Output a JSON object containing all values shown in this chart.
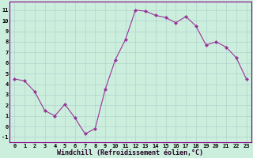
{
  "x": [
    0,
    1,
    2,
    3,
    4,
    5,
    6,
    7,
    8,
    9,
    10,
    11,
    12,
    13,
    14,
    15,
    16,
    17,
    18,
    19,
    20,
    21,
    22,
    23
  ],
  "y": [
    4.5,
    4.3,
    3.3,
    1.5,
    1.0,
    2.1,
    0.8,
    -0.7,
    -0.2,
    3.5,
    6.3,
    8.2,
    11.0,
    10.9,
    10.5,
    10.3,
    9.8,
    10.4,
    9.5,
    7.7,
    8.0,
    7.5,
    6.5,
    4.5
  ],
  "line_color": "#993399",
  "marker": "D",
  "marker_size": 2.0,
  "bg_color": "#cceedd",
  "grid_color": "#aacccc",
  "xlabel": "Windchill (Refroidissement éolien,°C)",
  "ylim_min": -1.5,
  "ylim_max": 11.8,
  "xlim_min": -0.5,
  "xlim_max": 23.5,
  "yticks": [
    -1,
    0,
    1,
    2,
    3,
    4,
    5,
    6,
    7,
    8,
    9,
    10,
    11
  ],
  "xticks": [
    0,
    1,
    2,
    3,
    4,
    5,
    6,
    7,
    8,
    9,
    10,
    11,
    12,
    13,
    14,
    15,
    16,
    17,
    18,
    19,
    20,
    21,
    22,
    23
  ],
  "tick_fontsize": 5.0,
  "xlabel_fontsize": 6.0,
  "border_color": "#880088",
  "linewidth": 0.8
}
